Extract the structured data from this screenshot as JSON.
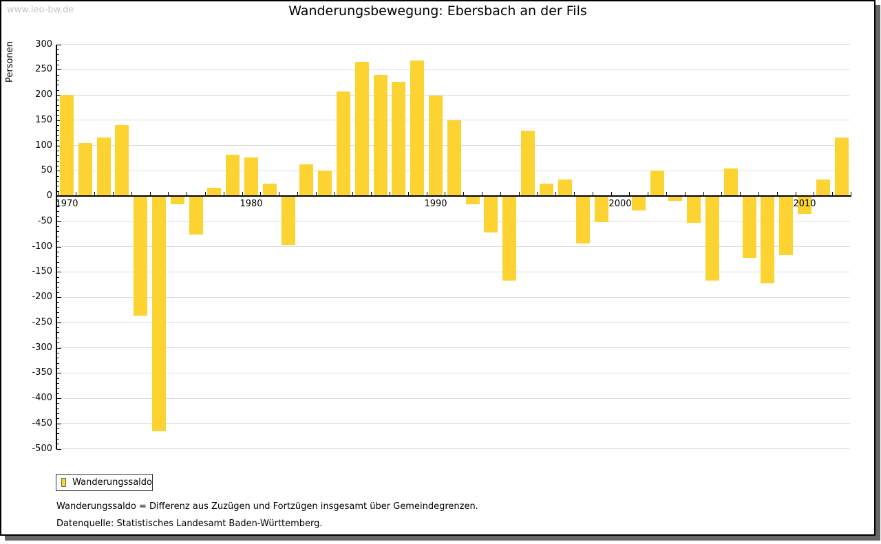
{
  "watermark": "www.leo-bw.de",
  "title": "Wanderungsbewegung: Ebersbach an der Fils",
  "chart_data": {
    "type": "bar",
    "title": "Wanderungsbewegung: Ebersbach an der Fils",
    "xlabel": "",
    "ylabel": "Personen",
    "ylim": [
      -500,
      300
    ],
    "y_tick_step": 50,
    "y_minor_tick_step": 10,
    "grid": "horizontal",
    "legend_position": "bottom-left",
    "categories": [
      1970,
      1971,
      1972,
      1973,
      1974,
      1975,
      1976,
      1977,
      1978,
      1979,
      1980,
      1981,
      1982,
      1983,
      1984,
      1985,
      1986,
      1987,
      1988,
      1989,
      1990,
      1991,
      1992,
      1993,
      1994,
      1995,
      1996,
      1997,
      1998,
      1999,
      2000,
      2001,
      2002,
      2003,
      2004,
      2005,
      2006,
      2007,
      2008,
      2009,
      2010,
      2011,
      2012
    ],
    "x_axis_decade_labels": [
      "1970",
      "1980",
      "1990",
      "2000",
      "2010"
    ],
    "series": [
      {
        "name": "Wanderungssaldo",
        "color": "#FCD330",
        "values": [
          200,
          105,
          115,
          140,
          -237,
          -465,
          -17,
          -76,
          17,
          81,
          76,
          24,
          -97,
          62,
          51,
          207,
          265,
          239,
          226,
          268,
          198,
          150,
          -17,
          -72,
          -167,
          129,
          24,
          33,
          -94,
          -52,
          0,
          -29,
          50,
          -10,
          -53,
          -167,
          55,
          -123,
          -173,
          -117,
          -35,
          32,
          115
        ]
      }
    ]
  },
  "legend": {
    "items": [
      {
        "label": "Wanderungssaldo",
        "color": "#FCD330"
      }
    ]
  },
  "notes": {
    "definition": "Wanderungssaldo = Differenz aus Zuzügen und Fortzügen insgesamt über Gemeindegrenzen.",
    "source": "Datenquelle: Statistisches Landesamt Baden-Württemberg."
  },
  "colors": {
    "bar": "#FCD330",
    "grid": "#DDDDDD",
    "axis": "#000000",
    "frame_shadow": "#666666",
    "watermark": "#C6C6C6"
  }
}
